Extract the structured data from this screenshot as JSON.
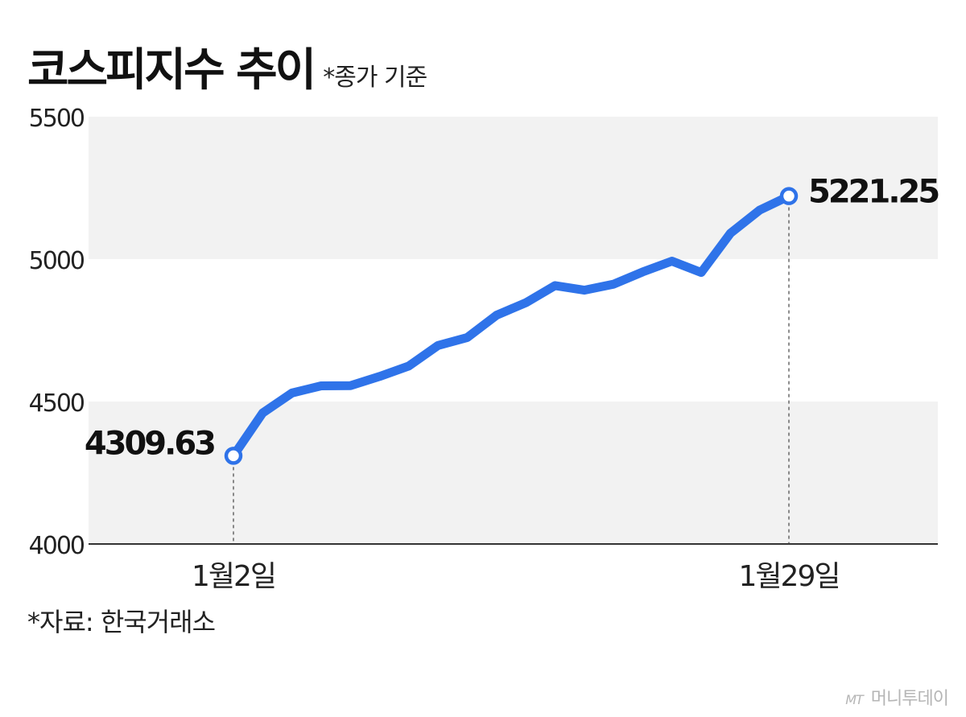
{
  "header": {
    "title": "코스피지수 추이",
    "subtitle": "*종가 기준"
  },
  "chart_data": {
    "type": "line",
    "ylim": [
      4000,
      5500
    ],
    "yticks": [
      4000,
      4500,
      5000,
      5500
    ],
    "x_tick_labels": [
      "1월2일",
      "1월29일"
    ],
    "series": [
      {
        "color": "#2f73e9",
        "values": [
          4309.63,
          4460,
          4530,
          4555,
          4556,
          4588,
          4625,
          4697,
          4725,
          4803,
          4847,
          4907,
          4891,
          4912,
          4955,
          4993,
          4953,
          5091,
          5172,
          5221.25
        ]
      }
    ],
    "annotations": [
      {
        "index": 0,
        "label": "4309.63"
      },
      {
        "index": 19,
        "label": "5221.25"
      }
    ],
    "band_colors": [
      "#f2f2f2",
      "#ffffff"
    ]
  },
  "footer": {
    "source": "*자료: 한국거래소",
    "logo_mark": "MT",
    "logo_text": "머니투데이"
  }
}
